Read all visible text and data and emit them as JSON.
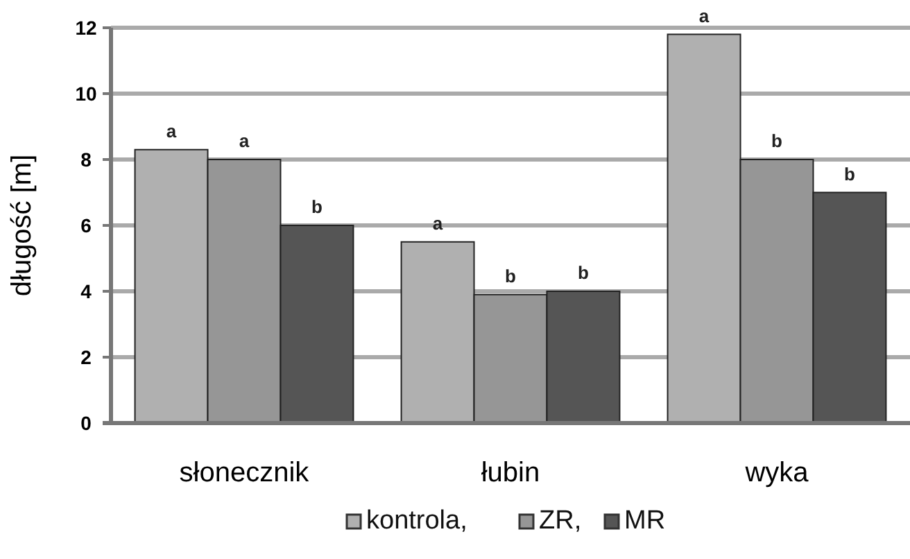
{
  "chart_data": {
    "type": "bar",
    "ylabel": "długość [m]",
    "categories": [
      "słonecznik",
      "łubin",
      "wyka"
    ],
    "series": [
      {
        "name": "kontrola,",
        "color": "#b0b0b0",
        "values": [
          8.3,
          5.5,
          11.8
        ],
        "value_labels": [
          "a",
          "a",
          "a"
        ]
      },
      {
        "name": "ZR,",
        "color": "#969696",
        "values": [
          8.0,
          3.9,
          8.0
        ],
        "value_labels": [
          "a",
          "b",
          "b"
        ]
      },
      {
        "name": "MR",
        "color": "#555555",
        "values": [
          6.0,
          4.0,
          7.0
        ],
        "value_labels": [
          "b",
          "b",
          "b"
        ]
      }
    ],
    "ylim": [
      0,
      12
    ],
    "yticks": [
      0,
      2,
      4,
      6,
      8,
      10,
      12
    ],
    "grid": "y",
    "legend": "bottom"
  }
}
